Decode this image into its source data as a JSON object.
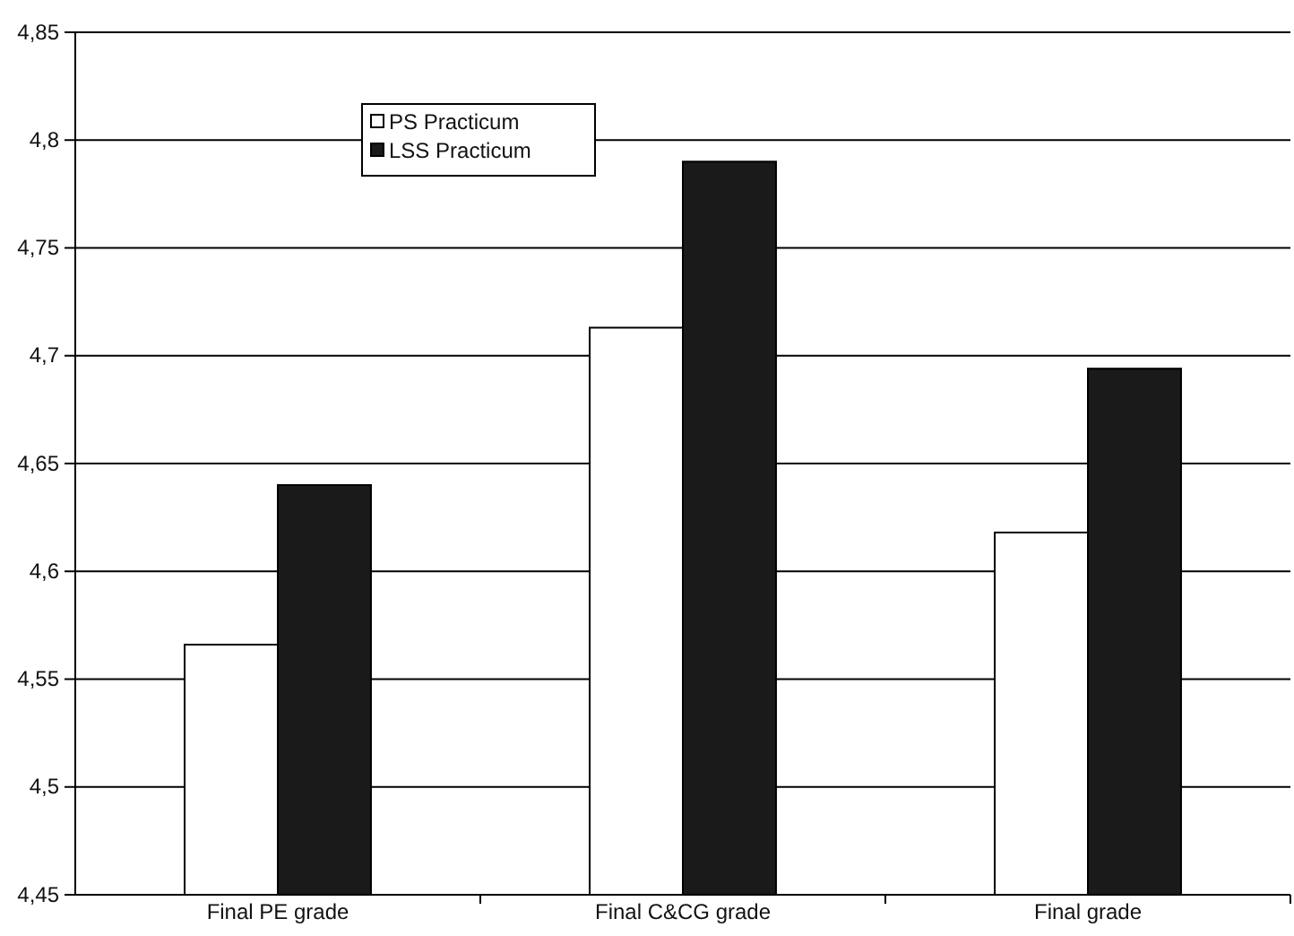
{
  "chart_data": {
    "type": "bar",
    "categories": [
      "Final PE grade",
      "Final C&CG grade",
      "Final grade"
    ],
    "series": [
      {
        "name": "PS Practicum",
        "color": "#ffffff",
        "values": [
          4.566,
          4.713,
          4.618
        ]
      },
      {
        "name": "LSS Practicum",
        "color": "#1a1a1a",
        "values": [
          4.64,
          4.79,
          4.694
        ]
      }
    ],
    "ylim": [
      4.45,
      4.85
    ],
    "yticks": [
      {
        "value": 4.45,
        "label": "4,45"
      },
      {
        "value": 4.5,
        "label": "4,5"
      },
      {
        "value": 4.55,
        "label": "4,55"
      },
      {
        "value": 4.6,
        "label": "4,6"
      },
      {
        "value": 4.65,
        "label": "4,65"
      },
      {
        "value": 4.7,
        "label": "4,7"
      },
      {
        "value": 4.75,
        "label": "4,75"
      },
      {
        "value": 4.8,
        "label": "4,8"
      },
      {
        "value": 4.85,
        "label": "4,85"
      }
    ],
    "grid": "y",
    "legend": "top left"
  }
}
